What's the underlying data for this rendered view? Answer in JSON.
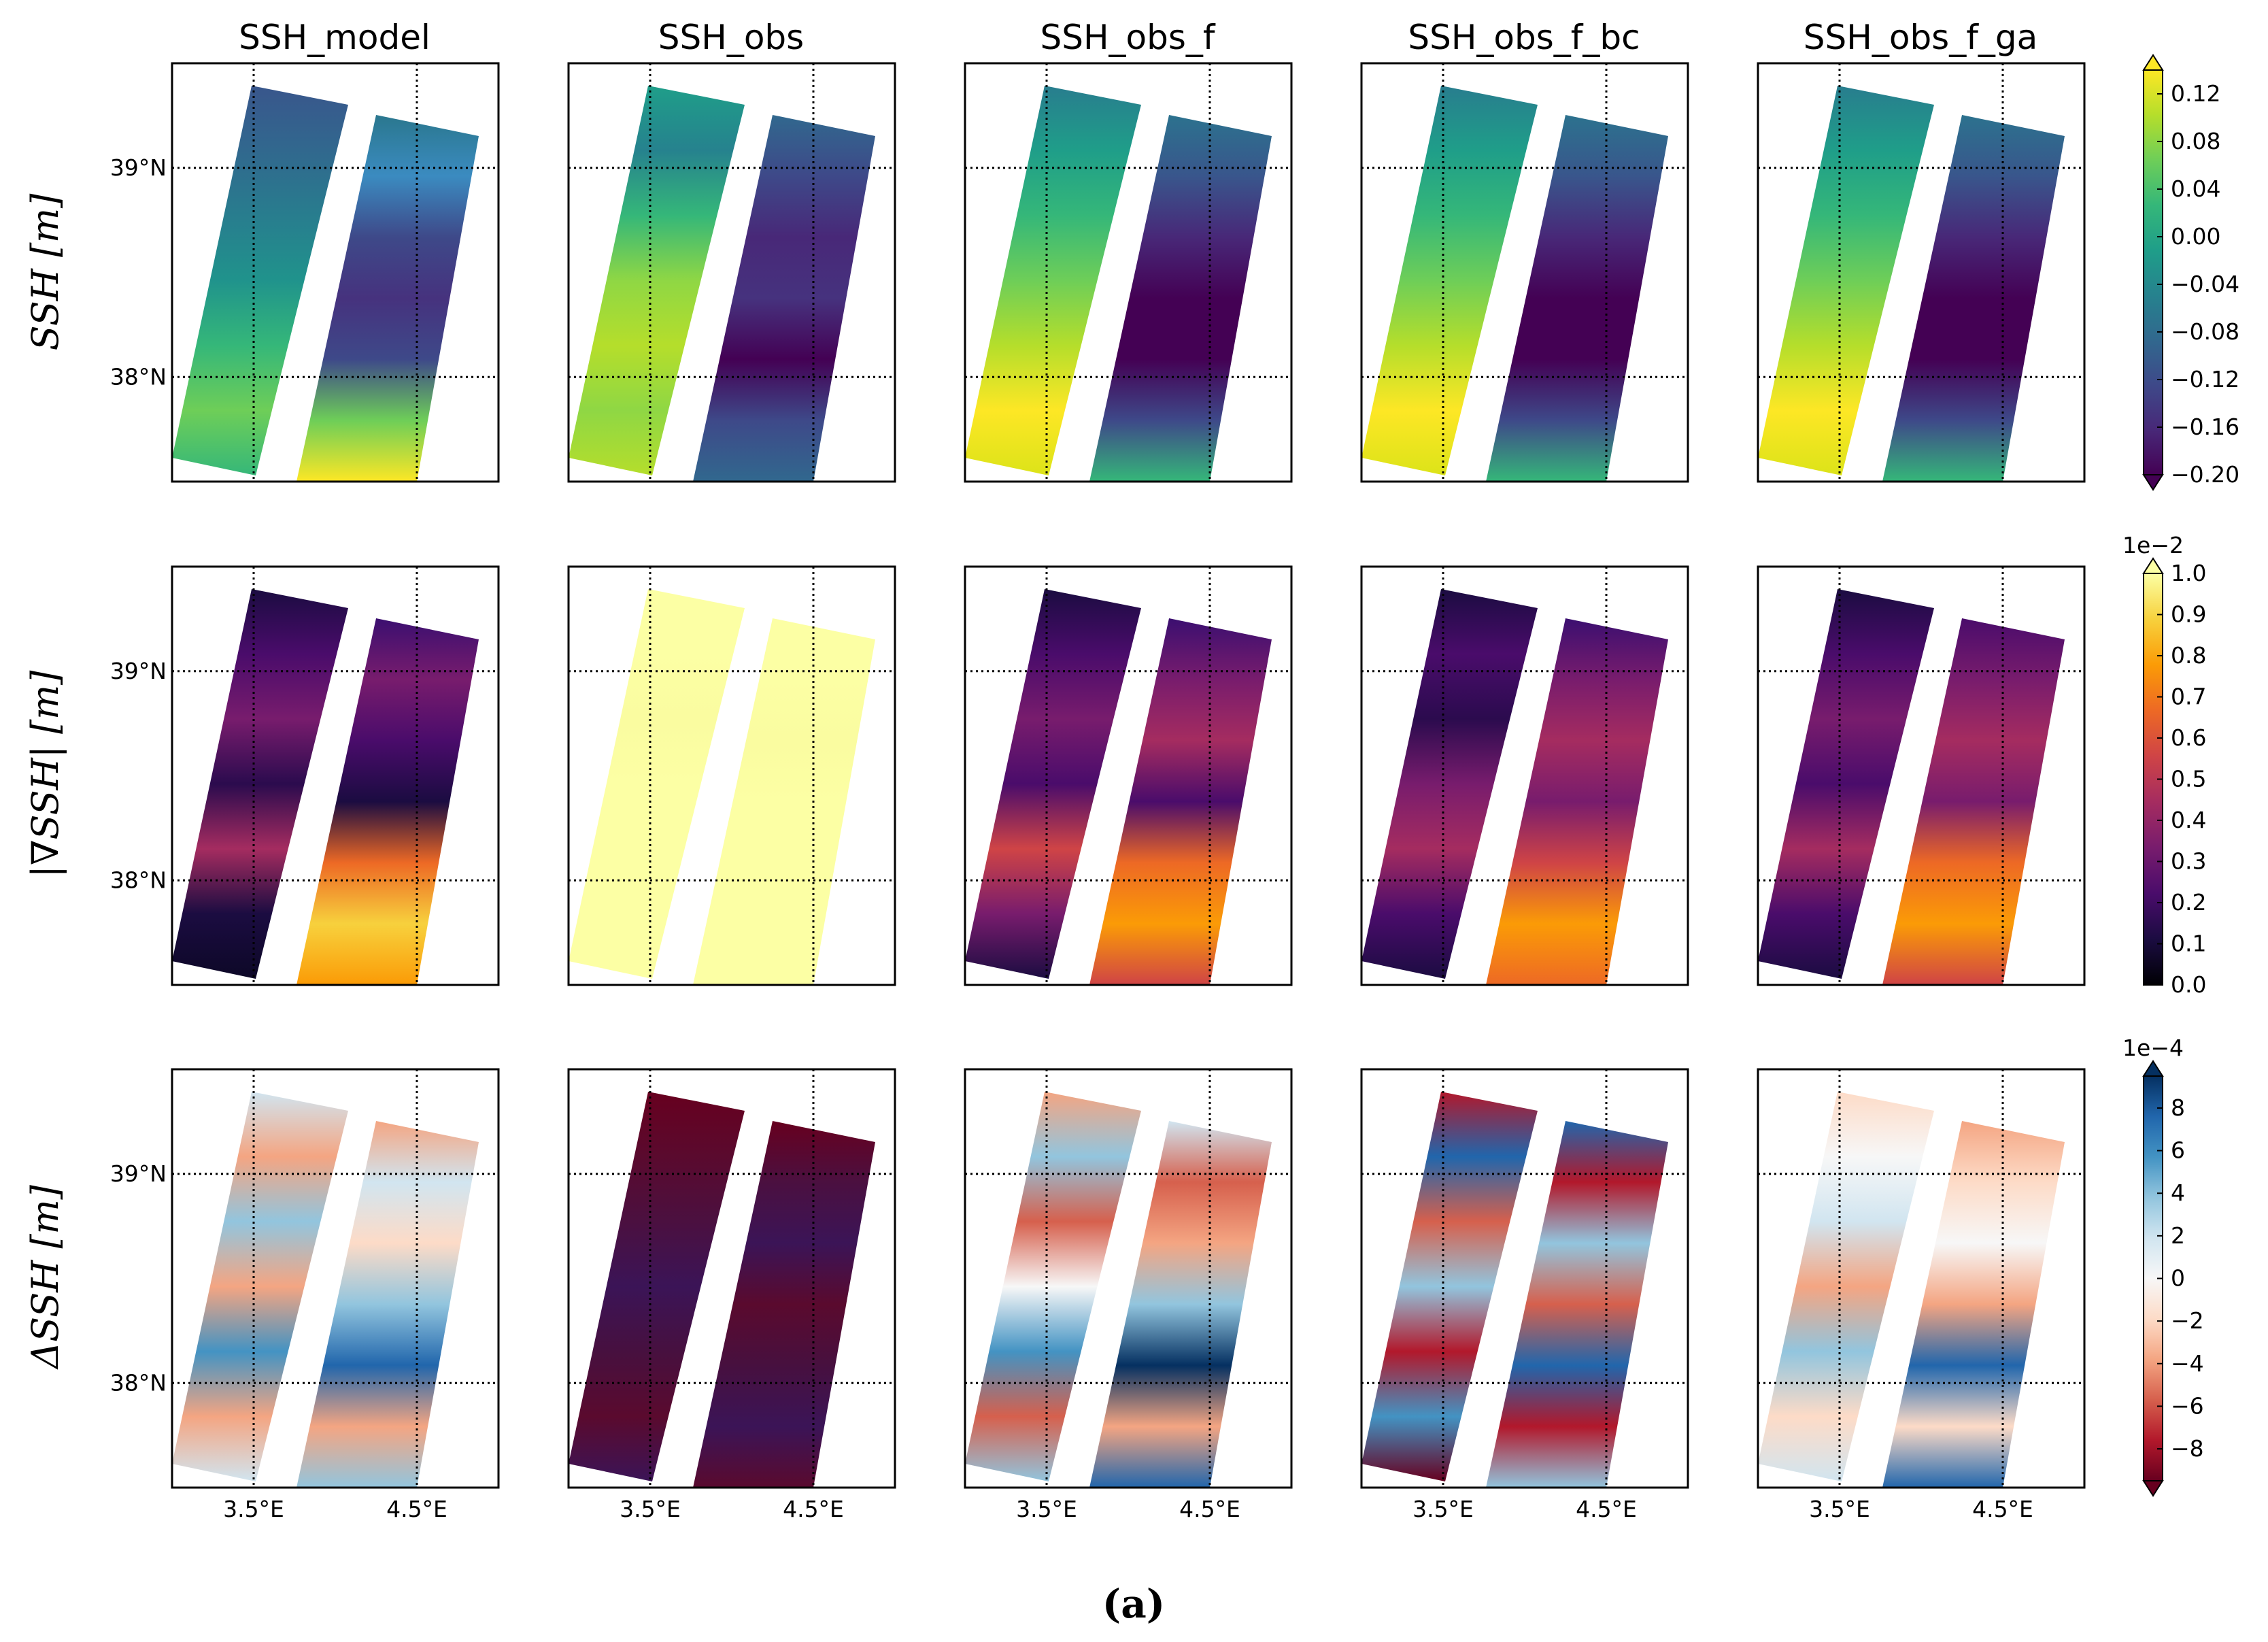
{
  "colors": {
    "viridis": [
      "#440154",
      "#482878",
      "#3e4989",
      "#31688e",
      "#26828e",
      "#1f9e89",
      "#35b779",
      "#6ece58",
      "#b5de2b",
      "#fde725"
    ],
    "inferno": [
      "#000004",
      "#1b0c41",
      "#4a0c6b",
      "#781c6d",
      "#a52c60",
      "#cf4446",
      "#ed6925",
      "#fb9b06",
      "#f7d13d",
      "#fcffa4"
    ],
    "rdbu": [
      "#67001f",
      "#b2182b",
      "#d6604d",
      "#f4a582",
      "#fddbc7",
      "#f7f7f7",
      "#d1e5f0",
      "#92c5de",
      "#4393c3",
      "#2166ac",
      "#053061"
    ]
  },
  "chart_data": {
    "type": "heatmap",
    "columns": [
      "SSH_model",
      "SSH_obs",
      "SSH_obs_f",
      "SSH_obs_f_bc",
      "SSH_obs_f_ga"
    ],
    "rows": [
      {
        "label": "SSH [m]",
        "colormap": "viridis",
        "colorbar": {
          "ticks": [
            "0.12",
            "0.08",
            "0.04",
            "0.00",
            "−0.04",
            "−0.08",
            "−0.12",
            "−0.16",
            "−0.20"
          ],
          "range": [
            -0.2,
            0.14
          ],
          "extend": "both",
          "multiplier": ""
        }
      },
      {
        "label": "|∇SSH| [m]",
        "colormap": "inferno",
        "colorbar": {
          "ticks": [
            "1.0",
            "0.9",
            "0.8",
            "0.7",
            "0.6",
            "0.5",
            "0.4",
            "0.3",
            "0.2",
            "0.1",
            "0.0"
          ],
          "range": [
            0.0,
            1.0
          ],
          "extend": "max",
          "multiplier": "1e−2"
        }
      },
      {
        "label": "ΔSSH [m]",
        "colormap": "RdBu",
        "colorbar": {
          "ticks": [
            "8",
            "6",
            "4",
            "2",
            "0",
            "−2",
            "−4",
            "−6",
            "−8"
          ],
          "range": [
            -9.5,
            9.5
          ],
          "extend": "both",
          "multiplier": "1e−4"
        }
      }
    ],
    "latitude_ticks": [
      "39°N",
      "38°N"
    ],
    "longitude_ticks": [
      "3.5°E",
      "4.5°E"
    ],
    "latitude_range": [
      37.5,
      39.5
    ],
    "longitude_range": [
      3.0,
      5.0
    ],
    "grid": true,
    "grid_style": "dotted",
    "caption": "(a)"
  }
}
